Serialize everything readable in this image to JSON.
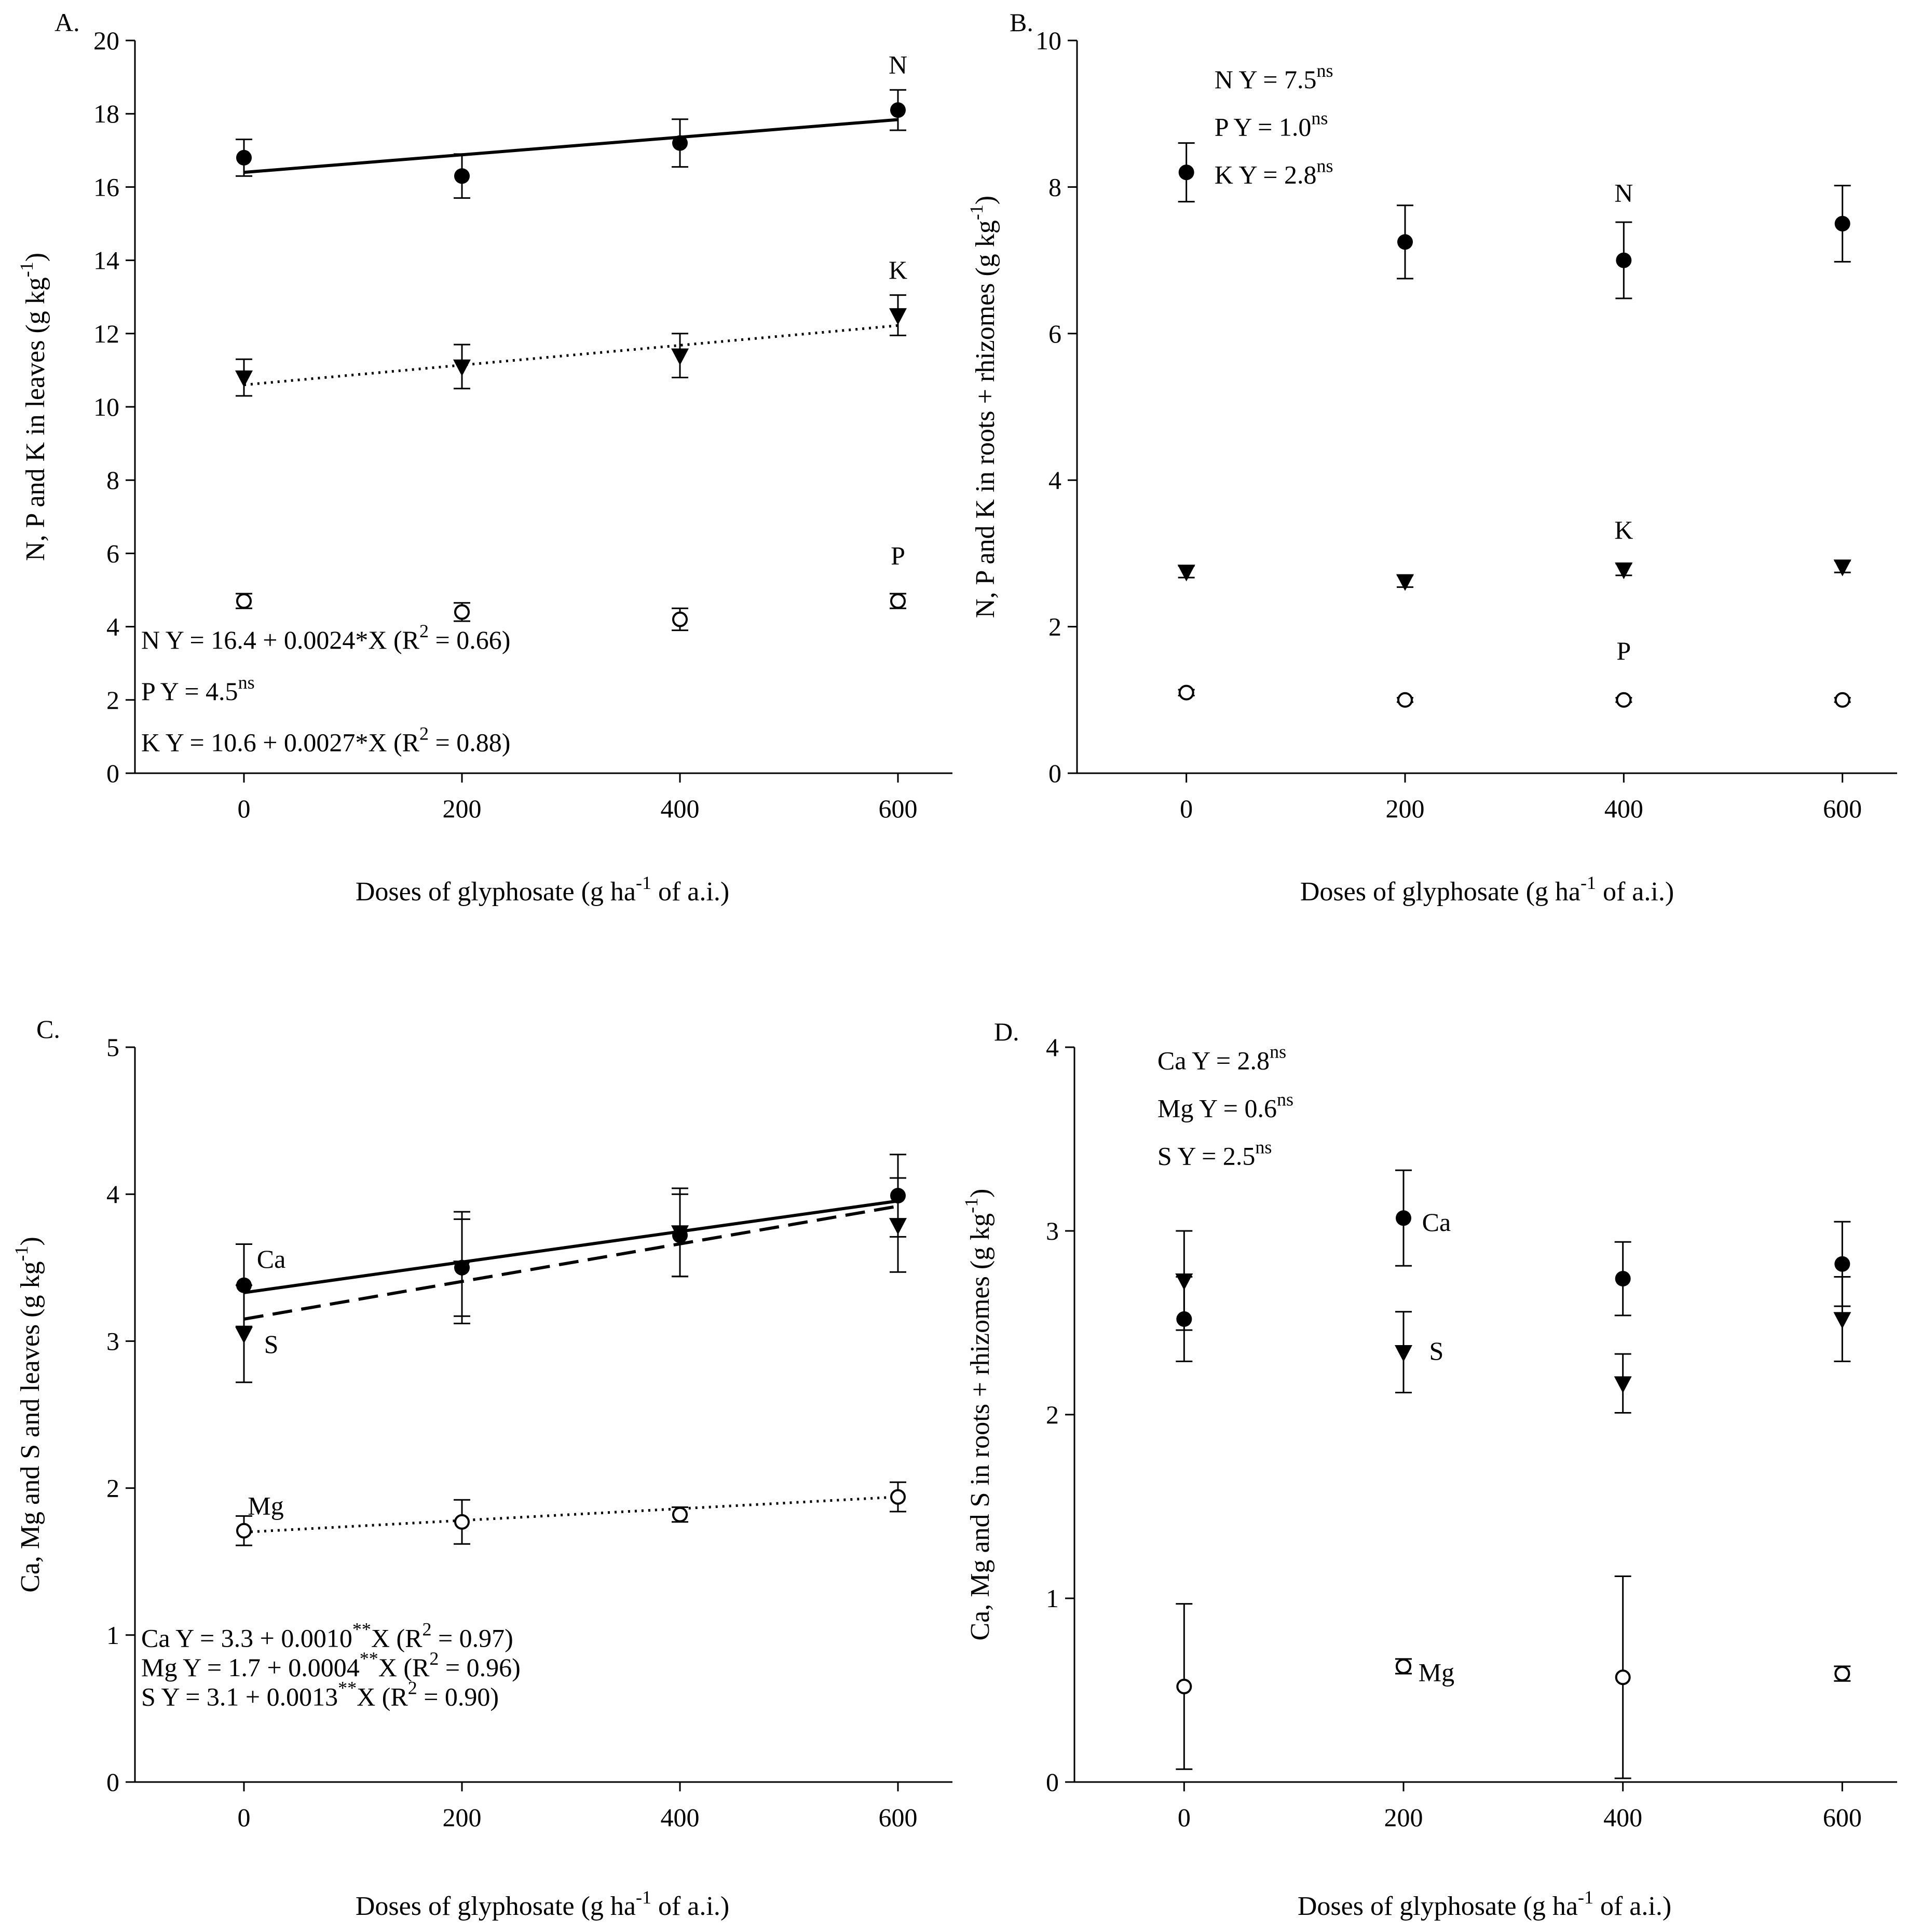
{
  "figure": {
    "title": ""
  },
  "chart_data": [
    {
      "id": "A",
      "type": "scatter",
      "panel_label": "A.",
      "xlabel_pre": "Doses of glyphosate (g ha",
      "xlabel_sup": "-1",
      "xlabel_post": " of a.i.)",
      "ylabel_pre": "N, P and K in leaves (g kg",
      "ylabel_sup": "-1",
      "ylabel_post": ")",
      "xlim": [
        -100,
        650
      ],
      "ylim": [
        0,
        20
      ],
      "xticks": [
        0,
        200,
        400,
        600
      ],
      "yticks": [
        0,
        2,
        4,
        6,
        8,
        10,
        12,
        14,
        16,
        18,
        20
      ],
      "series": [
        {
          "name": "N",
          "marker": "filled-circle",
          "x": [
            0,
            200,
            400,
            600
          ],
          "y": [
            16.8,
            16.3,
            17.2,
            18.1
          ],
          "err": [
            0.5,
            0.6,
            0.65,
            0.55
          ],
          "fit": {
            "intercept": 16.4,
            "slope": 0.0024,
            "style": "solid"
          },
          "label": "N",
          "label_at": [
            600,
            19.1
          ]
        },
        {
          "name": "K",
          "marker": "filled-triangle-down",
          "x": [
            0,
            200,
            400,
            600
          ],
          "y": [
            10.8,
            11.1,
            11.4,
            12.5
          ],
          "err": [
            0.5,
            0.6,
            0.6,
            0.55
          ],
          "fit": {
            "intercept": 10.6,
            "slope": 0.0027,
            "style": "dotted"
          },
          "label": "K",
          "label_at": [
            600,
            13.5
          ]
        },
        {
          "name": "P",
          "marker": "open-circle",
          "x": [
            0,
            200,
            400,
            600
          ],
          "y": [
            4.7,
            4.4,
            4.2,
            4.7
          ],
          "err": [
            0.2,
            0.25,
            0.3,
            0.2
          ],
          "fit": null,
          "label": "P",
          "label_at": [
            600,
            5.7
          ]
        }
      ],
      "annotations": [
        {
          "parts": [
            {
              "t": "N     Y = 16.4 + 0.0024*X  (R"
            },
            {
              "t": "2",
              "sup": true
            },
            {
              "t": " = 0.66)"
            }
          ],
          "at": [
            -100,
            3.4
          ]
        },
        {
          "parts": [
            {
              "t": "P     Y = 4.5"
            },
            {
              "t": "ns",
              "sup": true
            }
          ],
          "at": [
            -100,
            2.0
          ]
        },
        {
          "parts": [
            {
              "t": "K     Y = 10.6 + 0.0027*X  (R"
            },
            {
              "t": "2",
              "sup": true
            },
            {
              "t": " = 0.88)"
            }
          ],
          "at": [
            -100,
            0.6
          ]
        }
      ]
    },
    {
      "id": "B",
      "type": "scatter",
      "panel_label": "B.",
      "xlabel_pre": "Doses of glyphosate (g ha",
      "xlabel_sup": "-1",
      "xlabel_post": " of a.i.)",
      "ylabel_pre": "N, P and K in roots + rhizomes (g kg",
      "ylabel_sup": "-1",
      "ylabel_post": ")",
      "xlim": [
        -100,
        650
      ],
      "ylim": [
        0,
        10
      ],
      "xticks": [
        0,
        200,
        400,
        600
      ],
      "yticks": [
        0,
        2,
        4,
        6,
        8,
        10
      ],
      "series": [
        {
          "name": "N",
          "marker": "filled-circle",
          "x": [
            0,
            200,
            400,
            600
          ],
          "y": [
            8.2,
            7.25,
            7.0,
            7.5
          ],
          "err": [
            0.4,
            0.5,
            0.52,
            0.52
          ],
          "fit": null,
          "label": "N",
          "label_at": [
            400,
            7.8
          ]
        },
        {
          "name": "K",
          "marker": "filled-triangle-down",
          "x": [
            0,
            200,
            400,
            600
          ],
          "y": [
            2.75,
            2.62,
            2.78,
            2.82
          ],
          "err": [
            0.08,
            0.08,
            0.08,
            0.08
          ],
          "fit": null,
          "label": "K",
          "label_at": [
            400,
            3.2
          ]
        },
        {
          "name": "P",
          "marker": "open-circle",
          "x": [
            0,
            200,
            400,
            600
          ],
          "y": [
            1.1,
            1.0,
            1.0,
            1.0
          ],
          "err": [
            0.04,
            0.03,
            0.03,
            0.03
          ],
          "fit": null,
          "label": "P",
          "label_at": [
            400,
            1.55
          ]
        }
      ],
      "annotations": [
        {
          "parts": [
            {
              "t": "N    Y = 7.5"
            },
            {
              "t": "ns",
              "sup": true
            }
          ],
          "at": [
            20,
            9.35
          ]
        },
        {
          "parts": [
            {
              "t": "P     Y = 1.0"
            },
            {
              "t": "ns",
              "sup": true
            }
          ],
          "at": [
            20,
            8.7
          ]
        },
        {
          "parts": [
            {
              "t": "K    Y = 2.8"
            },
            {
              "t": "ns",
              "sup": true
            }
          ],
          "at": [
            20,
            8.05
          ]
        }
      ]
    },
    {
      "id": "C",
      "type": "scatter",
      "panel_label": "C.",
      "xlabel_pre": "Doses of glyphosate (g ha",
      "xlabel_sup": "-1",
      "xlabel_post": " of a.i.)",
      "ylabel_pre": "Ca, Mg and S and leaves (g kg",
      "ylabel_sup": "-1",
      "ylabel_post": ")",
      "xlim": [
        -100,
        650
      ],
      "ylim": [
        0,
        5
      ],
      "xticks": [
        0,
        200,
        400,
        600
      ],
      "yticks": [
        0,
        1,
        2,
        3,
        4,
        5
      ],
      "series": [
        {
          "name": "Ca",
          "marker": "filled-circle",
          "x": [
            0,
            200,
            400,
            600
          ],
          "y": [
            3.38,
            3.5,
            3.72,
            3.99
          ],
          "err": [
            0.28,
            0.38,
            0.28,
            0.28
          ],
          "fit": {
            "intercept": 3.33,
            "slope": 0.00104,
            "style": "solid"
          },
          "label": "Ca",
          "label_at": [
            25,
            3.5
          ]
        },
        {
          "name": "S",
          "marker": "filled-triangle-down",
          "x": [
            0,
            200,
            400,
            600
          ],
          "y": [
            3.05,
            3.5,
            3.74,
            3.79
          ],
          "err": [
            0.33,
            0.33,
            0.3,
            0.32
          ],
          "fit": {
            "intercept": 3.15,
            "slope": 0.00128,
            "style": "dashed"
          },
          "label": "S",
          "label_at": [
            25,
            2.92
          ]
        },
        {
          "name": "Mg",
          "marker": "open-circle",
          "x": [
            0,
            200,
            400,
            600
          ],
          "y": [
            1.71,
            1.77,
            1.82,
            1.94
          ],
          "err": [
            0.1,
            0.15,
            0.05,
            0.1
          ],
          "fit": {
            "intercept": 1.7,
            "slope": 0.0004,
            "style": "dotted"
          },
          "label": "Mg",
          "label_at": [
            20,
            1.82
          ]
        }
      ],
      "annotations": [
        {
          "parts": [
            {
              "t": "Ca    Y = 3.3 + 0.0010"
            },
            {
              "t": "**",
              "sup": true
            },
            {
              "t": "X  (R"
            },
            {
              "t": "2",
              "sup": true
            },
            {
              "t": " = 0.97)"
            }
          ],
          "at": [
            -100,
            0.92
          ]
        },
        {
          "parts": [
            {
              "t": "Mg   Y = 1.7 + 0.0004"
            },
            {
              "t": "**",
              "sup": true
            },
            {
              "t": "X  (R"
            },
            {
              "t": "2",
              "sup": true
            },
            {
              "t": " = 0.96)"
            }
          ],
          "at": [
            -100,
            0.72
          ]
        },
        {
          "parts": [
            {
              "t": "S      Y = 3.1 + 0.0013"
            },
            {
              "t": "**",
              "sup": true
            },
            {
              "t": "X  (R"
            },
            {
              "t": "2",
              "sup": true
            },
            {
              "t": " = 0.90)"
            }
          ],
          "at": [
            -100,
            0.52
          ]
        }
      ]
    },
    {
      "id": "D",
      "type": "scatter",
      "panel_label": "D.",
      "xlabel_pre": "Doses of glyphosate (g ha",
      "xlabel_sup": "-1",
      "xlabel_post": " of a.i.)",
      "ylabel_pre": "Ca, Mg and S in roots + rhizomes (g kg",
      "ylabel_sup": "-1",
      "ylabel_post": ")",
      "xlim": [
        -100,
        650
      ],
      "ylim": [
        0,
        4
      ],
      "xticks": [
        0,
        200,
        400,
        600
      ],
      "yticks": [
        0,
        1,
        2,
        3,
        4
      ],
      "series": [
        {
          "name": "Ca",
          "marker": "filled-circle",
          "x": [
            0,
            200,
            400,
            600
          ],
          "y": [
            2.52,
            3.07,
            2.74,
            2.82
          ],
          "err": [
            0.23,
            0.26,
            0.2,
            0.23
          ],
          "fit": null,
          "label": "Ca",
          "label_at": [
            230,
            3.0
          ]
        },
        {
          "name": "S",
          "marker": "filled-triangle-down",
          "x": [
            0,
            200,
            400,
            600
          ],
          "y": [
            2.73,
            2.34,
            2.17,
            2.52
          ],
          "err": [
            0.27,
            0.22,
            0.16,
            0.23
          ],
          "fit": null,
          "label": "S",
          "label_at": [
            230,
            2.3
          ]
        },
        {
          "name": "Mg",
          "marker": "open-circle",
          "x": [
            0,
            200,
            400,
            600
          ],
          "y": [
            0.52,
            0.63,
            0.57,
            0.59
          ],
          "err": [
            0.45,
            0.04,
            0.55,
            0.04
          ],
          "fit": null,
          "label": "Mg",
          "label_at": [
            230,
            0.55
          ]
        }
      ],
      "annotations": [
        {
          "parts": [
            {
              "t": "Ca    Y = 2.8"
            },
            {
              "t": "ns",
              "sup": true
            }
          ],
          "at": [
            -30,
            3.88
          ]
        },
        {
          "parts": [
            {
              "t": "Mg   Y = 0.6"
            },
            {
              "t": "ns",
              "sup": true
            }
          ],
          "at": [
            -30,
            3.62
          ]
        },
        {
          "parts": [
            {
              "t": "S       Y = 2.5"
            },
            {
              "t": "ns",
              "sup": true
            }
          ],
          "at": [
            -30,
            3.36
          ]
        }
      ]
    }
  ]
}
